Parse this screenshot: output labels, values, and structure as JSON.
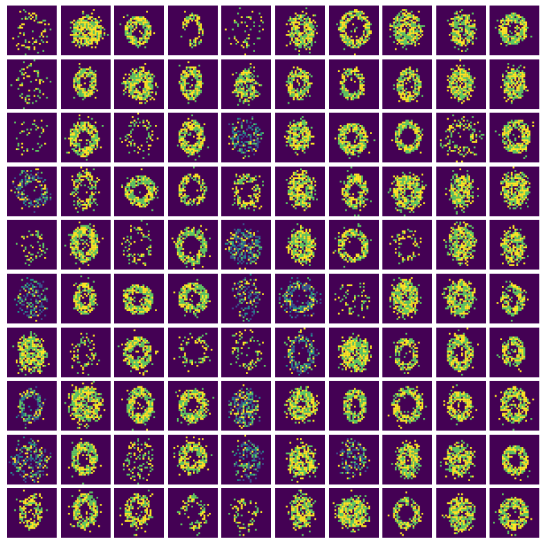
{
  "figure": {
    "rows": 10,
    "cols": 10,
    "sample_resolution": 28,
    "colormap": "viridis",
    "colors": {
      "background": "#440154",
      "low_mid": "#3b528b",
      "mid": "#21918c",
      "high_mid": "#5ec962",
      "high": "#fde725",
      "separator": "#ffffff"
    },
    "tiles": [
      {
        "shape": "ring",
        "fill": 0.2,
        "noise": 0.25
      },
      {
        "shape": "blob",
        "fill": 0.9,
        "noise": 0.1
      },
      {
        "shape": "loop",
        "fill": 0.85,
        "noise": 0.1
      },
      {
        "shape": "hook",
        "fill": 0.7,
        "noise": 0.1
      },
      {
        "shape": "ring",
        "fill": 0.15,
        "noise": 0.2
      },
      {
        "shape": "blob",
        "fill": 0.85,
        "noise": 0.15
      },
      {
        "shape": "ring",
        "fill": 0.8,
        "noise": 0.1
      },
      {
        "shape": "blob",
        "fill": 0.85,
        "noise": 0.1
      },
      {
        "shape": "blob",
        "fill": 0.8,
        "noise": 0.15
      },
      {
        "shape": "loop",
        "fill": 0.85,
        "noise": 0.15
      },
      {
        "shape": "ring",
        "fill": 0.2,
        "noise": 0.2
      },
      {
        "shape": "loop",
        "fill": 0.8,
        "noise": 0.2
      },
      {
        "shape": "blob",
        "fill": 0.85,
        "noise": 0.2
      },
      {
        "shape": "loop",
        "fill": 0.85,
        "noise": 0.15
      },
      {
        "shape": "blob",
        "fill": 0.8,
        "noise": 0.15
      },
      {
        "shape": "loop",
        "fill": 0.8,
        "noise": 0.2
      },
      {
        "shape": "ring",
        "fill": 0.8,
        "noise": 0.15
      },
      {
        "shape": "loop",
        "fill": 0.85,
        "noise": 0.1
      },
      {
        "shape": "blob",
        "fill": 0.9,
        "noise": 0.1
      },
      {
        "shape": "blob",
        "fill": 0.9,
        "noise": 0.1
      },
      {
        "shape": "ring",
        "fill": 0.15,
        "noise": 0.2
      },
      {
        "shape": "loop",
        "fill": 0.85,
        "noise": 0.15
      },
      {
        "shape": "ring",
        "fill": 0.25,
        "noise": 0.2
      },
      {
        "shape": "loop",
        "fill": 0.85,
        "noise": 0.1
      },
      {
        "shape": "noise",
        "fill": 0.45,
        "noise": 0.45
      },
      {
        "shape": "blob",
        "fill": 0.85,
        "noise": 0.15
      },
      {
        "shape": "loop",
        "fill": 0.85,
        "noise": 0.1
      },
      {
        "shape": "ring",
        "fill": 0.85,
        "noise": 0.1
      },
      {
        "shape": "ring",
        "fill": 0.35,
        "noise": 0.3
      },
      {
        "shape": "loop",
        "fill": 0.8,
        "noise": 0.15
      },
      {
        "shape": "ring",
        "fill": 0.6,
        "noise": 0.45
      },
      {
        "shape": "ring",
        "fill": 0.6,
        "noise": 0.3
      },
      {
        "shape": "loop",
        "fill": 0.85,
        "noise": 0.1
      },
      {
        "shape": "ring",
        "fill": 0.7,
        "noise": 0.1
      },
      {
        "shape": "ring",
        "fill": 0.45,
        "noise": 0.3
      },
      {
        "shape": "blob",
        "fill": 0.85,
        "noise": 0.1
      },
      {
        "shape": "loop",
        "fill": 0.85,
        "noise": 0.2
      },
      {
        "shape": "blob",
        "fill": 0.85,
        "noise": 0.15
      },
      {
        "shape": "blob",
        "fill": 0.8,
        "noise": 0.25
      },
      {
        "shape": "blob",
        "fill": 0.85,
        "noise": 0.1
      },
      {
        "shape": "ring",
        "fill": 0.3,
        "noise": 0.25
      },
      {
        "shape": "loop",
        "fill": 0.85,
        "noise": 0.1
      },
      {
        "shape": "ring",
        "fill": 0.25,
        "noise": 0.2
      },
      {
        "shape": "ring",
        "fill": 0.8,
        "noise": 0.1
      },
      {
        "shape": "noise",
        "fill": 0.7,
        "noise": 0.4
      },
      {
        "shape": "blob",
        "fill": 0.9,
        "noise": 0.1
      },
      {
        "shape": "ring",
        "fill": 0.8,
        "noise": 0.2
      },
      {
        "shape": "ring",
        "fill": 0.35,
        "noise": 0.25
      },
      {
        "shape": "blob",
        "fill": 0.85,
        "noise": 0.15
      },
      {
        "shape": "blob",
        "fill": 0.85,
        "noise": 0.1
      },
      {
        "shape": "noise",
        "fill": 0.4,
        "noise": 0.4
      },
      {
        "shape": "loop",
        "fill": 0.85,
        "noise": 0.1
      },
      {
        "shape": "loop",
        "fill": 0.85,
        "noise": 0.1
      },
      {
        "shape": "loop",
        "fill": 0.85,
        "noise": 0.15
      },
      {
        "shape": "noise",
        "fill": 0.4,
        "noise": 0.4
      },
      {
        "shape": "ring",
        "fill": 0.7,
        "noise": 0.45
      },
      {
        "shape": "noise",
        "fill": 0.15,
        "noise": 0.2
      },
      {
        "shape": "blob",
        "fill": 0.85,
        "noise": 0.1
      },
      {
        "shape": "blob",
        "fill": 0.85,
        "noise": 0.15
      },
      {
        "shape": "loop",
        "fill": 0.8,
        "noise": 0.2
      },
      {
        "shape": "blob",
        "fill": 0.85,
        "noise": 0.1
      },
      {
        "shape": "ring",
        "fill": 0.3,
        "noise": 0.25
      },
      {
        "shape": "loop",
        "fill": 0.85,
        "noise": 0.1
      },
      {
        "shape": "ring",
        "fill": 0.35,
        "noise": 0.2
      },
      {
        "shape": "ring",
        "fill": 0.3,
        "noise": 0.25
      },
      {
        "shape": "ring",
        "fill": 0.65,
        "noise": 0.5
      },
      {
        "shape": "blob",
        "fill": 0.9,
        "noise": 0.1
      },
      {
        "shape": "ring",
        "fill": 0.75,
        "noise": 0.25
      },
      {
        "shape": "loop",
        "fill": 0.85,
        "noise": 0.1
      },
      {
        "shape": "loop",
        "fill": 0.85,
        "noise": 0.1
      },
      {
        "shape": "ring",
        "fill": 0.7,
        "noise": 0.45
      },
      {
        "shape": "blob",
        "fill": 0.85,
        "noise": 0.1
      },
      {
        "shape": "loop",
        "fill": 0.85,
        "noise": 0.1
      },
      {
        "shape": "loop",
        "fill": 0.8,
        "noise": 0.2
      },
      {
        "shape": "noise",
        "fill": 0.65,
        "noise": 0.4
      },
      {
        "shape": "blob",
        "fill": 0.85,
        "noise": 0.1
      },
      {
        "shape": "loop",
        "fill": 0.85,
        "noise": 0.1
      },
      {
        "shape": "ring",
        "fill": 0.8,
        "noise": 0.15
      },
      {
        "shape": "loop",
        "fill": 0.8,
        "noise": 0.25
      },
      {
        "shape": "loop",
        "fill": 0.85,
        "noise": 0.1
      },
      {
        "shape": "noise",
        "fill": 0.55,
        "noise": 0.4
      },
      {
        "shape": "loop",
        "fill": 0.85,
        "noise": 0.1
      },
      {
        "shape": "noise",
        "fill": 0.35,
        "noise": 0.3
      },
      {
        "shape": "loop",
        "fill": 0.8,
        "noise": 0.2
      },
      {
        "shape": "noise",
        "fill": 0.5,
        "noise": 0.4
      },
      {
        "shape": "blob",
        "fill": 0.8,
        "noise": 0.25
      },
      {
        "shape": "noise",
        "fill": 0.45,
        "noise": 0.6
      },
      {
        "shape": "blob",
        "fill": 0.9,
        "noise": 0.1
      },
      {
        "shape": "blob",
        "fill": 0.85,
        "noise": 0.15
      },
      {
        "shape": "loop",
        "fill": 0.85,
        "noise": 0.1
      },
      {
        "shape": "loop",
        "fill": 0.65,
        "noise": 0.3
      },
      {
        "shape": "loop",
        "fill": 0.85,
        "noise": 0.15
      },
      {
        "shape": "loop",
        "fill": 0.7,
        "noise": 0.2
      },
      {
        "shape": "hook",
        "fill": 0.55,
        "noise": 0.2
      },
      {
        "shape": "ring",
        "fill": 0.3,
        "noise": 0.25
      },
      {
        "shape": "blob",
        "fill": 0.85,
        "noise": 0.15
      },
      {
        "shape": "blob",
        "fill": 0.85,
        "noise": 0.1
      },
      {
        "shape": "ring",
        "fill": 0.8,
        "noise": 0.25
      },
      {
        "shape": "blob",
        "fill": 0.85,
        "noise": 0.15
      },
      {
        "shape": "loop",
        "fill": 0.85,
        "noise": 0.1
      }
    ]
  }
}
